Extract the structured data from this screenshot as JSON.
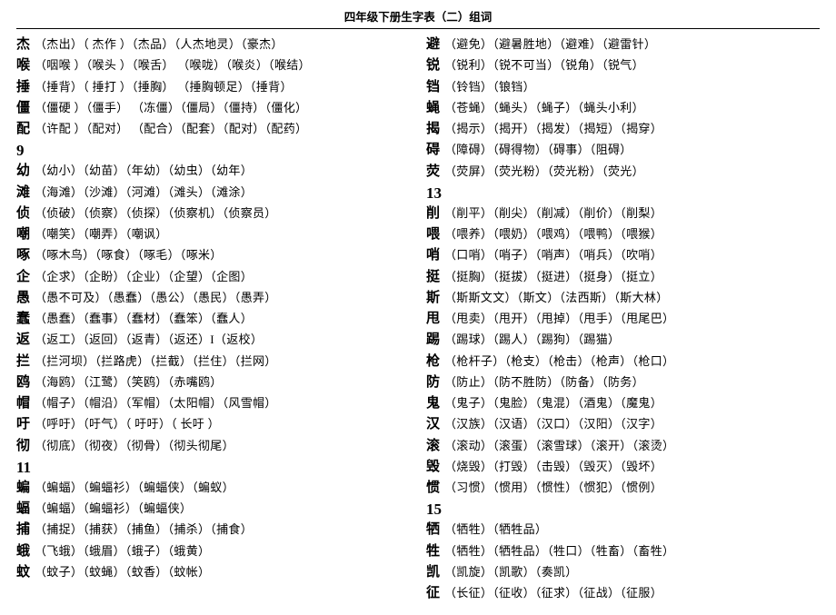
{
  "title": "四年级下册生字表（二）组词",
  "columns": [
    {
      "rows": [
        {
          "type": "entry",
          "char": "杰",
          "words": "（杰出）（ 杰作 ）（杰品）（人杰地灵）（豪杰）"
        },
        {
          "type": "entry",
          "char": "喉",
          "words": "（咽喉 ）（喉头 ）（喉舌）  （喉咙）（喉炎）（喉结）"
        },
        {
          "type": "entry",
          "char": "捶",
          "words": "（捶背）（ 捶打 ）（捶胸）  （捶胸顿足）（捶背）"
        },
        {
          "type": "entry",
          "char": "僵",
          "words": "（僵硬 ）（僵手） （冻僵）（僵局）（僵持）（僵化）"
        },
        {
          "type": "entry",
          "char": "配",
          "words": "（许配 ）（配对） （配合）（配套）（配对）（配药）"
        },
        {
          "type": "section",
          "num": "9"
        },
        {
          "type": "entry",
          "char": "幼",
          "words": "（幼小）（幼苗）（年幼）（幼虫）（幼年）"
        },
        {
          "type": "entry",
          "char": "滩",
          "words": "（海滩）（沙滩）（河滩）（滩头）（滩涂）"
        },
        {
          "type": "entry",
          "char": "侦",
          "words": "（侦破）（侦察）（侦探）（侦察机）（侦察员）"
        },
        {
          "type": "entry",
          "char": "嘲",
          "words": "（嘲笑）（嘲弄）（嘲讽）"
        },
        {
          "type": "entry",
          "char": "啄",
          "words": "（啄木鸟）（啄食）（啄毛）（啄米）"
        },
        {
          "type": "entry",
          "char": "企",
          "words": "（企求）（企盼）（企业）（企望）（企图）"
        },
        {
          "type": "entry",
          "char": "愚",
          "words": "（愚不可及）（愚蠢）（愚公）（愚民）（愚弄）"
        },
        {
          "type": "entry",
          "char": "蠢",
          "words": "（愚蠢）（蠢事）（蠢材）（蠢笨）（蠢人）"
        },
        {
          "type": "entry",
          "char": "返",
          "words": "（返工）（返回）（返青）（返还）I（返校）"
        },
        {
          "type": "entry",
          "char": "拦",
          "words": "（拦河坝）（拦路虎）（拦截）（拦住）（拦网）"
        },
        {
          "type": "entry",
          "char": "鸥",
          "words": "（海鸥）（江鹭）（笑鸥）（赤嘴鸥）"
        },
        {
          "type": "entry",
          "char": "帽",
          "words": "（帽子）（帽沿）（军帽）（太阳帽）（风雪帽）"
        },
        {
          "type": "entry",
          "char": "吁",
          "words": "（呼吁）（吁气）（ 吁吁）（ 长吁 ）"
        },
        {
          "type": "entry",
          "char": "彻",
          "words": "（彻底）（彻夜）（彻骨）（彻头彻尾）"
        },
        {
          "type": "section",
          "num": "11"
        },
        {
          "type": "entry",
          "char": "蝙",
          "words": "（蝙蝠）（蝙蝠衫）（蝙蝠侠）（蝙蚁）"
        },
        {
          "type": "entry",
          "char": "蝠",
          "words": "（蝙蝠）（蝙蝠衫）（蝙蝠侠）"
        },
        {
          "type": "entry",
          "char": "捕",
          "words": "（捕捉）（捕获）（捕鱼）（捕杀）（捕食）"
        },
        {
          "type": "entry",
          "char": "蛾",
          "words": "（飞蛾）（蛾眉）（蛾子）（蛾黄）"
        },
        {
          "type": "entry",
          "char": "蚊",
          "words": "（蚊子）（蚊蝇）（蚊香）（蚊帐）"
        }
      ]
    },
    {
      "rows": [
        {
          "type": "entry",
          "char": "避",
          "words": "（避免）（避暑胜地）（避难）（避雷针）"
        },
        {
          "type": "entry",
          "char": "锐",
          "words": "（锐利）（锐不可当）（锐角）（锐气）"
        },
        {
          "type": "entry",
          "char": "铛",
          "words": "（铃铛）（锒铛）"
        },
        {
          "type": "entry",
          "char": "蝇",
          "words": "（苍蝇）（蝇头）（蝇子）（蝇头小利）"
        },
        {
          "type": "entry",
          "char": "揭",
          "words": "（揭示）（揭开）（揭发）（揭短）（揭穿）"
        },
        {
          "type": "entry",
          "char": "碍",
          "words": "（障碍）（碍得物）（碍事）（阻碍）"
        },
        {
          "type": "entry",
          "char": "荧",
          "words": "（荧屏）（荧光粉）（荧光粉）（荧光）"
        },
        {
          "type": "section",
          "num": "13"
        },
        {
          "type": "entry",
          "char": "削",
          "words": "（削平）（削尖）（削减）（削价）（削梨）"
        },
        {
          "type": "entry",
          "char": "喂",
          "words": "（喂养）（喂奶）（喂鸡）（喂鸭）（喂猴）"
        },
        {
          "type": "entry",
          "char": "哨",
          "words": "（口哨）（哨子）（哨声）（哨兵）（吹哨）"
        },
        {
          "type": "entry",
          "char": "挺",
          "words": "（挺胸）（挺拔）（挺进）（挺身）（挺立）"
        },
        {
          "type": "entry",
          "char": "斯",
          "words": "（斯斯文文）（斯文）（法西斯）（斯大林）"
        },
        {
          "type": "entry",
          "char": "甩",
          "words": "（甩卖）（甩开）（甩掉）（甩手）（甩尾巴）"
        },
        {
          "type": "entry",
          "char": "踢",
          "words": "（踢球）（踢人）（踢狗）（踢猫）"
        },
        {
          "type": "entry",
          "char": "枪",
          "words": "（枪杆子）（枪支）（枪击）（枪声）（枪口）"
        },
        {
          "type": "entry",
          "char": "防",
          "words": "（防止）（防不胜防）（防备）（防务）"
        },
        {
          "type": "entry",
          "char": "鬼",
          "words": "（鬼子）（鬼脸）（鬼混）（酒鬼）（魔鬼）"
        },
        {
          "type": "entry",
          "char": "汉",
          "words": "（汉族）（汉语）（汉口）（汉阳）（汉字）"
        },
        {
          "type": "entry",
          "char": "滚",
          "words": "（滚动）（滚蛋）（滚雪球）（滚开）（滚烫）"
        },
        {
          "type": "entry",
          "char": "毁",
          "words": "（烧毁）（打毁）（击毁）（毁灭）（毁坏）"
        },
        {
          "type": "entry",
          "char": "惯",
          "words": "（习惯）（惯用）（惯性）（惯犯）（惯例）"
        },
        {
          "type": "section",
          "num": "15"
        },
        {
          "type": "entry",
          "char": "牺",
          "words": "（牺牲）（牺牲品）"
        },
        {
          "type": "entry",
          "char": "牲",
          "words": "（牺牲）（牺牲品）（牲口）（牲畜）（畜牲）"
        },
        {
          "type": "entry",
          "char": "凯",
          "words": "（凯旋）（凯歌）（奏凯）"
        },
        {
          "type": "entry",
          "char": "征",
          "words": "（长征）（征收）（征求）（征战）（征服）"
        }
      ]
    }
  ]
}
